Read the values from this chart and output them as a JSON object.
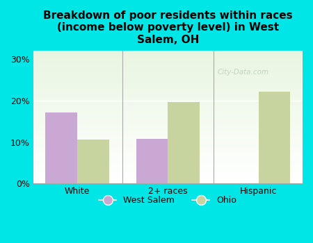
{
  "title": "Breakdown of poor residents within races\n(income below poverty level) in West\nSalem, OH",
  "categories": [
    "White",
    "2+ races",
    "Hispanic"
  ],
  "west_salem": [
    17.2,
    10.7,
    0.0
  ],
  "ohio": [
    10.6,
    19.6,
    22.2
  ],
  "west_salem_color": "#c9a8d4",
  "ohio_color": "#c8d4a0",
  "background_color": "#00e5e5",
  "plot_bg_top": "#e8f5e0",
  "plot_bg_bottom": "#ffffff",
  "bar_width": 0.35,
  "ylim": [
    0,
    32
  ],
  "yticks": [
    0,
    10,
    20,
    30
  ],
  "ytick_labels": [
    "0%",
    "10%",
    "20%",
    "30%"
  ],
  "legend_west_salem": "West Salem",
  "legend_ohio": "Ohio",
  "watermark": "City-Data.com"
}
